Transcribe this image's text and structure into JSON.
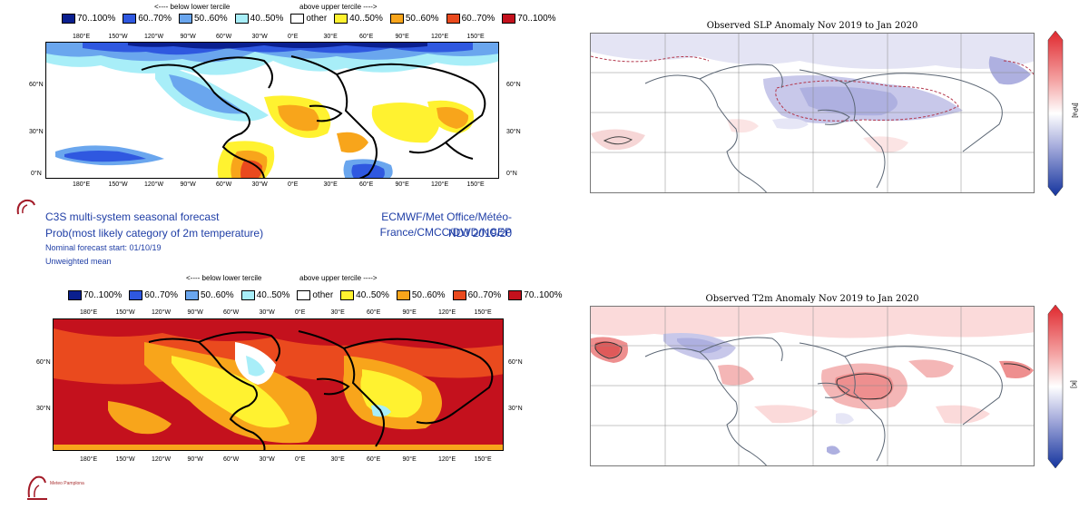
{
  "legend": {
    "items": [
      {
        "label": "70..100%",
        "color": "#0a1f8f"
      },
      {
        "label": "60..70%",
        "color": "#2f58e0"
      },
      {
        "label": "50..60%",
        "color": "#6aa6ee"
      },
      {
        "label": "40..50%",
        "color": "#a8eef8"
      },
      {
        "label": "other",
        "color": "#ffffff"
      },
      {
        "label": "40..50%",
        "color": "#fff230"
      },
      {
        "label": "50..60%",
        "color": "#f8a51b"
      },
      {
        "label": "60..70%",
        "color": "#ea4a1e"
      },
      {
        "label": "70..100%",
        "color": "#c4111d"
      }
    ],
    "below_label": "<---- below lower tercile",
    "above_label": "above upper tercile ---->",
    "below_label_2": "<---- below lower tercile",
    "above_label_2": "above upper tercile ---->"
  },
  "lon_ticks": [
    "180°E",
    "150°W",
    "120°W",
    "90°W",
    "60°W",
    "30°W",
    "0°E",
    "30°E",
    "60°E",
    "90°E",
    "120°E",
    "150°E"
  ],
  "lat_ticks_top": [
    "60°N",
    "30°N",
    "0°N"
  ],
  "lat_ticks_bottom": [
    "60°N",
    "30°N"
  ],
  "c3s": {
    "line1": "C3S multi-system seasonal forecast",
    "line2": "Prob(most likely category of 2m temperature)",
    "line3": "Nominal forecast start: 01/10/19",
    "line4": "Unweighted mean",
    "centres": "ECMWF/Met Office/Météo-France/CMCC/DWD/NCEP",
    "season": "NDJ 2019/20"
  },
  "right_maps": {
    "slp_title": "Observed SLP Anomaly Nov 2019 to Jan 2020",
    "t2m_title": "Observed T2m Anomaly Nov 2019 to Jan 2020",
    "slp_unit": "[hPa]",
    "t2m_unit": "[K]"
  },
  "logo": {
    "name": "Meteo Pamplona"
  },
  "colors": {
    "text_blue": "#1f3ea6",
    "cbar_red": "#e0282e",
    "cbar_blue": "#14349e"
  }
}
